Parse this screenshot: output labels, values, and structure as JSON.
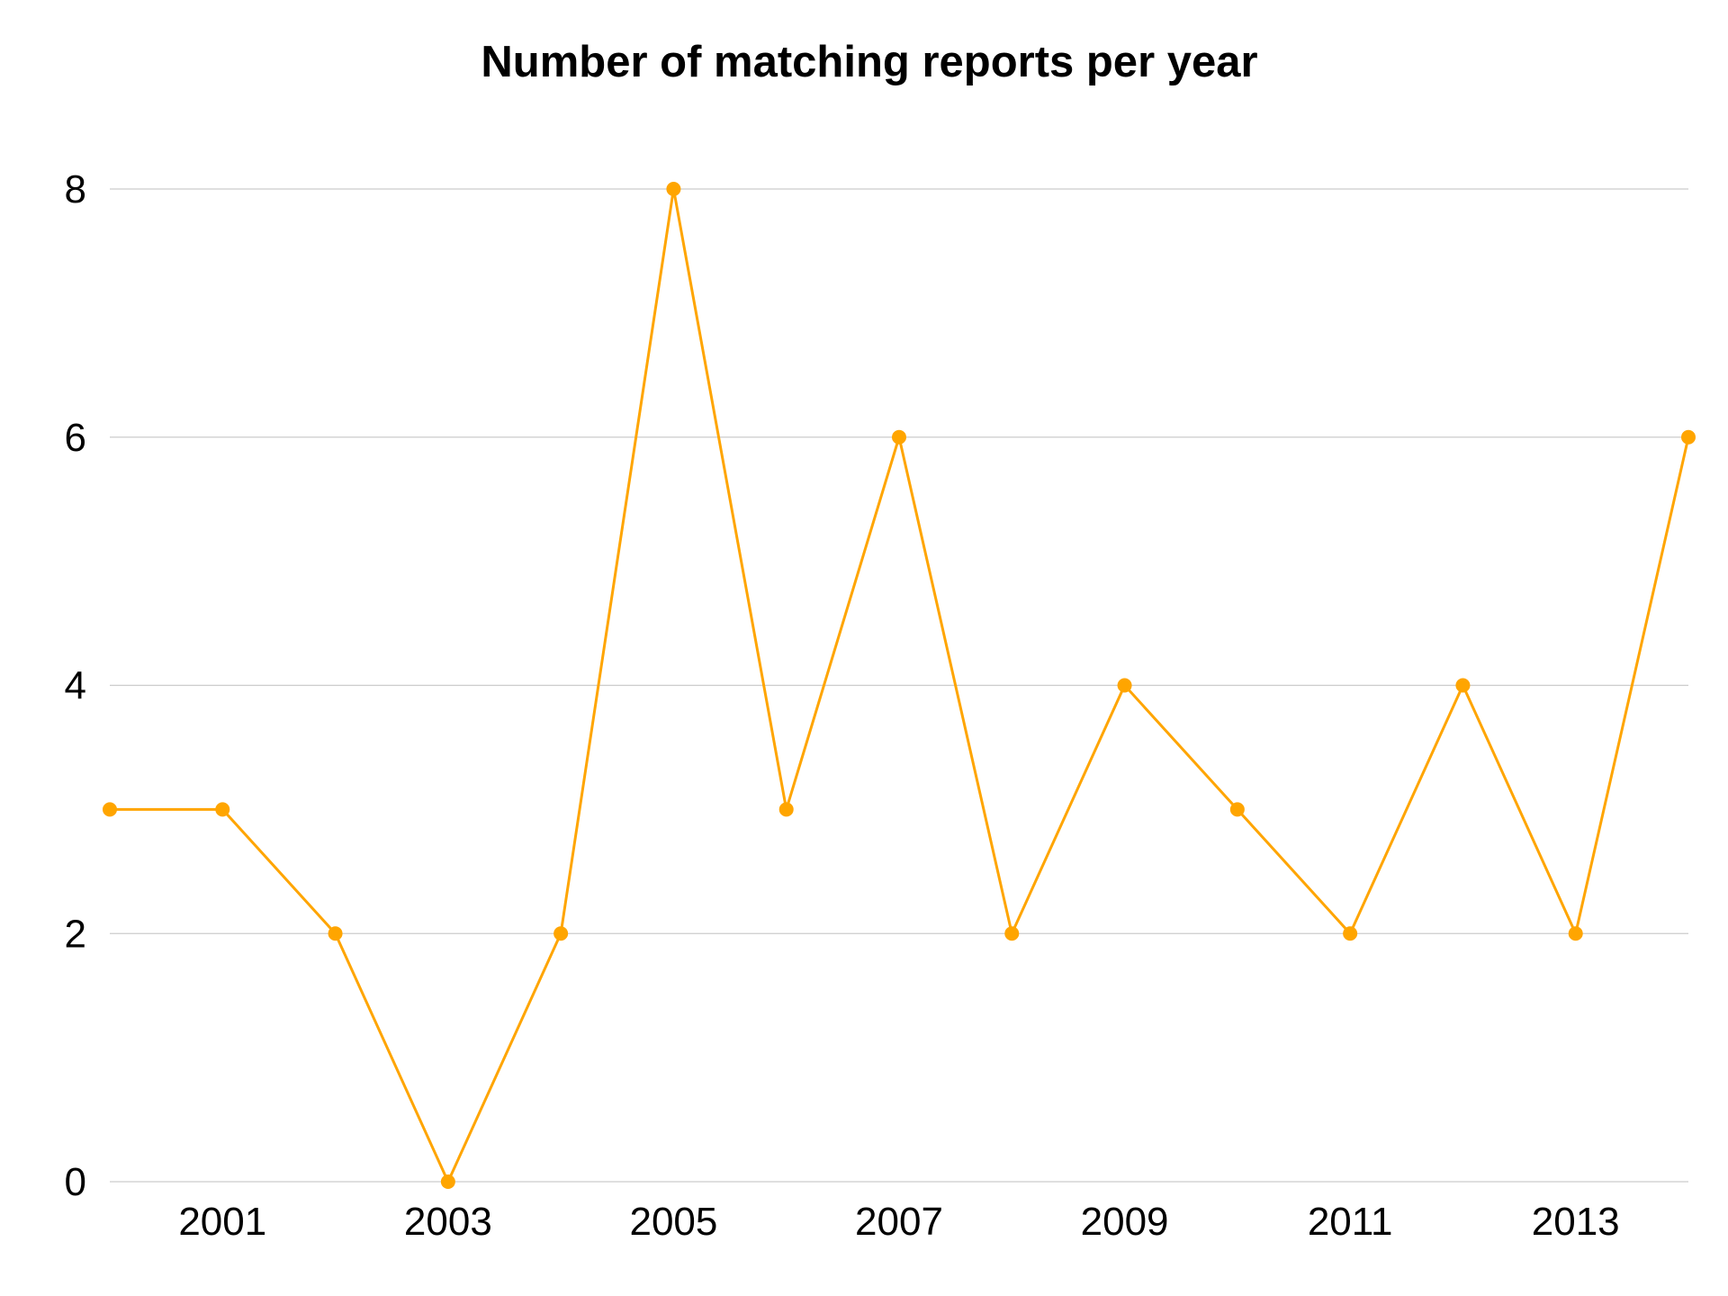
{
  "chart_data": {
    "type": "line",
    "title": "Number of matching reports per year",
    "xlabel": "",
    "ylabel": "",
    "x": [
      2000,
      2001,
      2002,
      2003,
      2004,
      2005,
      2006,
      2007,
      2008,
      2009,
      2010,
      2011,
      2012,
      2013,
      2014
    ],
    "series": [
      {
        "values": [
          3,
          3,
          2,
          0,
          2,
          8,
          3,
          6,
          2,
          4,
          3,
          2,
          4,
          2,
          6
        ],
        "color": "#ffa500"
      }
    ],
    "xlim": [
      2000,
      2014
    ],
    "ylim": [
      0,
      8
    ],
    "x_ticks": [
      2001,
      2003,
      2005,
      2007,
      2009,
      2011,
      2013
    ],
    "y_ticks": [
      0,
      2,
      4,
      6,
      8
    ],
    "grid": "horizontal",
    "legend": "none",
    "gridline_color": "#cccccc"
  }
}
